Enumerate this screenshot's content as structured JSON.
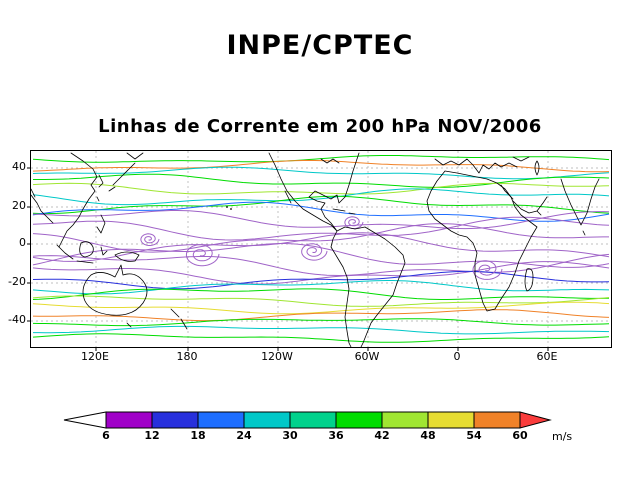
{
  "page": {
    "title": "INPE/CPTEC",
    "chart_title": "Linhas de Corrente em 200 hPa NOV/2006"
  },
  "axes": {
    "lat_ticks": [
      "40",
      "20",
      "0",
      "-20",
      "-40"
    ],
    "lon_ticks": [
      "120E",
      "180",
      "120W",
      "60W",
      "0",
      "60E"
    ]
  },
  "colorbar": {
    "tick_labels": [
      "6",
      "12",
      "18",
      "24",
      "30",
      "36",
      "42",
      "48",
      "54",
      "60"
    ],
    "unit": "m/s",
    "below_color": "#FFFFFF",
    "segment_colors": [
      "#A000C8",
      "#2830DC",
      "#1E6EFF",
      "#00C8C8",
      "#00D28C",
      "#00DC00",
      "#A0E632",
      "#E6DC32",
      "#F08228"
    ],
    "above_color": "#FA3C3C",
    "streamline_purple": "#A064C8"
  },
  "chart_data": {
    "type": "line",
    "subtype": "streamline_map",
    "title": "Linhas de Corrente em 200 hPa NOV/2006",
    "source_label": "INPE/CPTEC",
    "level": "200 hPa",
    "period": "NOV/2006",
    "x_ticks": [
      "120E",
      "180",
      "120W",
      "60W",
      "0",
      "60E"
    ],
    "y_ticks": [
      40,
      20,
      0,
      -20,
      -40
    ],
    "colorbar_levels": [
      6,
      12,
      18,
      24,
      30,
      36,
      42,
      48,
      54,
      60
    ],
    "colorbar_unit": "m/s",
    "grid": true,
    "legend_position": "bottom"
  }
}
